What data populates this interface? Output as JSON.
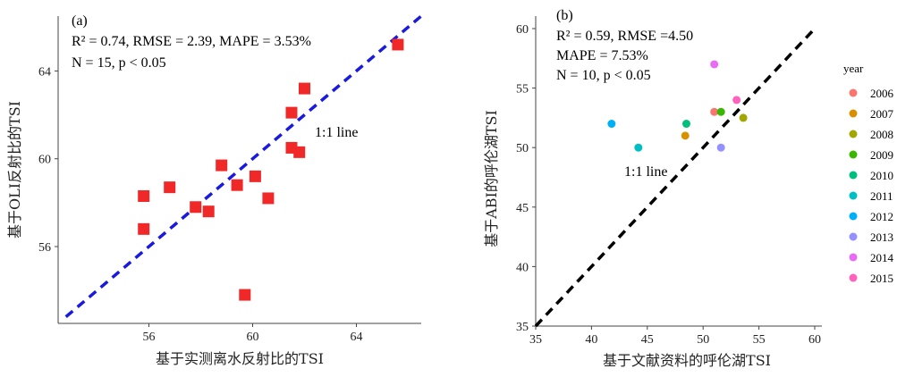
{
  "chart_data": [
    {
      "type": "scatter",
      "panel_label": "(a)",
      "stats_line1": "R² = 0.74, RMSE = 2.39, MAPE = 3.53%",
      "stats_line2": "N = 15, p < 0.05",
      "line_label": "1:1 line",
      "xlabel": "基于实测离水反射比的TSI",
      "ylabel": "基于OLI反射比的TSI",
      "xlim": [
        52.5,
        66.5
      ],
      "ylim": [
        52.5,
        66.5
      ],
      "xticks": [
        56,
        60,
        64
      ],
      "yticks": [
        56,
        60,
        64
      ],
      "marker_color": "#f02828",
      "line_color": "#1a1adf",
      "points": [
        {
          "x": 55.8,
          "y": 58.3
        },
        {
          "x": 55.8,
          "y": 56.8
        },
        {
          "x": 56.8,
          "y": 58.7
        },
        {
          "x": 57.8,
          "y": 57.8
        },
        {
          "x": 58.3,
          "y": 57.6
        },
        {
          "x": 58.8,
          "y": 59.7
        },
        {
          "x": 59.4,
          "y": 58.8
        },
        {
          "x": 59.7,
          "y": 53.8
        },
        {
          "x": 60.1,
          "y": 59.2
        },
        {
          "x": 60.6,
          "y": 58.2
        },
        {
          "x": 61.5,
          "y": 62.1
        },
        {
          "x": 61.5,
          "y": 60.5
        },
        {
          "x": 61.8,
          "y": 60.3
        },
        {
          "x": 62.0,
          "y": 63.2
        },
        {
          "x": 65.6,
          "y": 65.2
        }
      ]
    },
    {
      "type": "scatter",
      "panel_label": "(b)",
      "stats_line1": "R² = 0.59, RMSE =4.50",
      "stats_line2": "MAPE = 7.53%",
      "stats_line3": "N = 10, p < 0.05",
      "line_label": "1:1 line",
      "xlabel": "基于文献资料的呼伦湖TSI",
      "ylabel": "基于ABI的呼伦湖TSI",
      "xlim": [
        35,
        60
      ],
      "ylim": [
        35,
        60
      ],
      "xticks": [
        35,
        40,
        45,
        50,
        55,
        60
      ],
      "yticks": [
        35,
        40,
        45,
        50,
        55,
        60
      ],
      "line_color": "#000000",
      "legend_title": "year",
      "legend": [
        {
          "label": "2006",
          "color": "#f8766d"
        },
        {
          "label": "2007",
          "color": "#d89000"
        },
        {
          "label": "2008",
          "color": "#a3a500"
        },
        {
          "label": "2009",
          "color": "#39b600"
        },
        {
          "label": "2010",
          "color": "#00bf7d"
        },
        {
          "label": "2011",
          "color": "#00bfc4"
        },
        {
          "label": "2012",
          "color": "#00b0f6"
        },
        {
          "label": "2013",
          "color": "#9590ff"
        },
        {
          "label": "2014",
          "color": "#e76bf3"
        },
        {
          "label": "2015",
          "color": "#ff62bc"
        }
      ],
      "points": [
        {
          "x": 41.8,
          "y": 52.0,
          "year": "2012"
        },
        {
          "x": 44.2,
          "y": 50.0,
          "year": "2011"
        },
        {
          "x": 48.4,
          "y": 51.0,
          "year": "2007"
        },
        {
          "x": 48.5,
          "y": 52.0,
          "year": "2010"
        },
        {
          "x": 51.0,
          "y": 57.0,
          "year": "2014"
        },
        {
          "x": 51.0,
          "y": 53.0,
          "year": "2006"
        },
        {
          "x": 51.6,
          "y": 53.0,
          "year": "2009"
        },
        {
          "x": 51.6,
          "y": 50.0,
          "year": "2013"
        },
        {
          "x": 53.0,
          "y": 54.0,
          "year": "2015"
        },
        {
          "x": 53.6,
          "y": 52.5,
          "year": "2008"
        }
      ]
    }
  ]
}
